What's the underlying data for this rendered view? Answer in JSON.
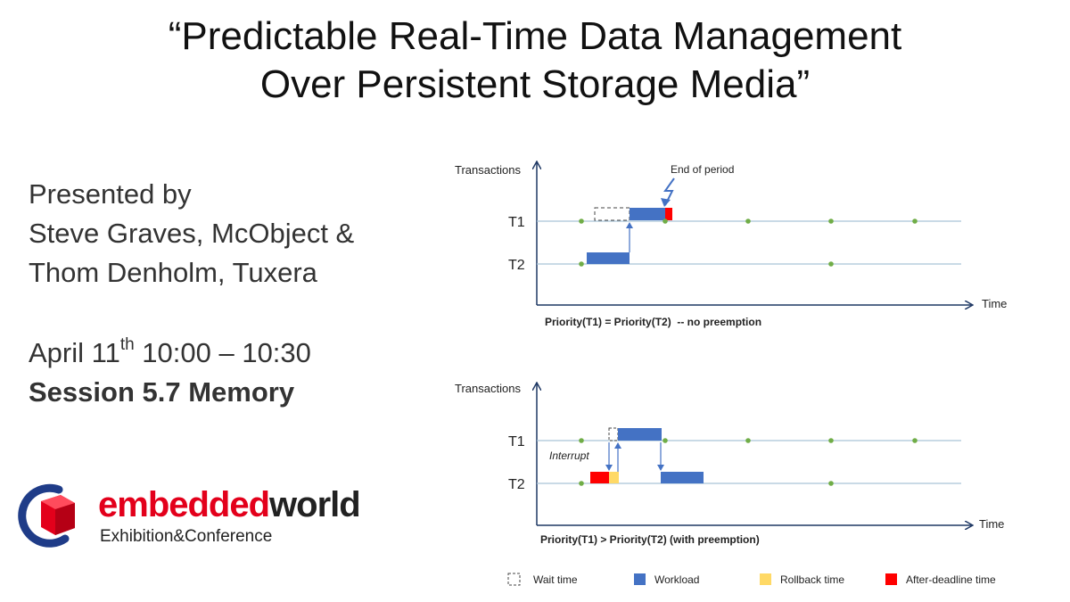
{
  "title": {
    "line1": "“Predictable Real-Time Data Management",
    "line2": "Over Persistent Storage Media”"
  },
  "presenters": {
    "line1": "Presented by",
    "line2": "Steve Graves, McObject &",
    "line3": "Thom Denholm, Tuxera"
  },
  "schedule": {
    "date_prefix": "April 11",
    "date_sup": "th",
    "time": " 10:00 – 10:30",
    "session": "Session 5.7 Memory"
  },
  "logo": {
    "word_part1": "embedded",
    "word_part2": "world",
    "subtitle": "Exhibition&Conference"
  },
  "diagram_top": {
    "y_axis_label": "Transactions",
    "x_axis_label": "Time",
    "row1_label": "T1",
    "row2_label": "T2",
    "annotation": "End of period",
    "caption": "Priority(T1) = Priority(T2)  -- no preemption"
  },
  "diagram_bottom": {
    "y_axis_label": "Transactions",
    "x_axis_label": "Time",
    "row1_label": "T1",
    "row2_label": "T2",
    "annotation": "Interrupt",
    "caption": "Priority(T1) > Priority(T2) (with preemption)"
  },
  "legend": {
    "wait": "Wait time",
    "workload": "Workload",
    "rollback": "Rollback time",
    "after_deadline": "After-deadline time"
  },
  "colors": {
    "workload": "#4472c4",
    "rollback": "#ffd966",
    "after_deadline": "#ff0000",
    "timeline": "#a9c4d8",
    "period_dot": "#70ad47",
    "axis": "#1f3864"
  }
}
